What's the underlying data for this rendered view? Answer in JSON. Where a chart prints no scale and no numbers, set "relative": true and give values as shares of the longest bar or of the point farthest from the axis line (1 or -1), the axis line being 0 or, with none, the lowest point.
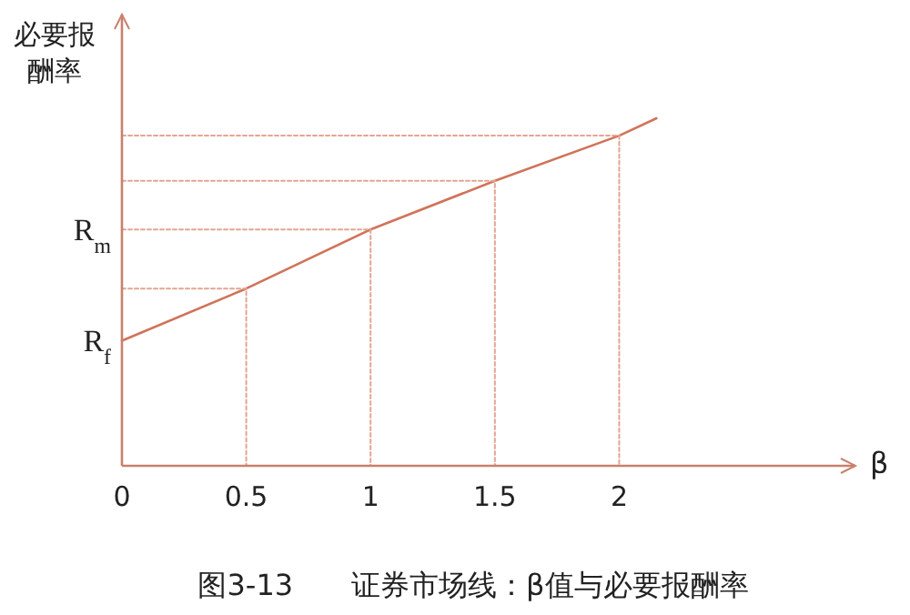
{
  "chart_data": {
    "type": "line",
    "relative": true,
    "title": "图3-13　　证券市场线：β值与必要报酬率",
    "xlabel": "β",
    "ylabel": "必要报酬率",
    "xlim": [
      0,
      2.95
    ],
    "xticks": [
      0,
      0.5,
      1,
      1.5,
      2
    ],
    "marker": "none",
    "grid": false,
    "annotations": [
      {
        "text": "R$_{f}$",
        "x": 0,
        "y": 0.36
      },
      {
        "text": "R$_{m}$",
        "x": 0,
        "y": 0.68
      }
    ],
    "series": [
      {
        "color": "#d0735a",
        "x": [
          0,
          0.5,
          1,
          1.5,
          2,
          2.15
        ],
        "values": [
          0.36,
          0.51,
          0.68,
          0.82,
          0.95,
          1
        ],
        "line_style": "solid"
      },
      {
        "color": "#e3a593",
        "x": [
          0,
          0.5,
          0.5
        ],
        "values": [
          0.51,
          0.51,
          0
        ],
        "line_style": "dotted"
      },
      {
        "color": "#e3a593",
        "x": [
          0,
          1,
          1
        ],
        "values": [
          0.68,
          0.68,
          0
        ],
        "line_style": "dotted"
      },
      {
        "color": "#e3a593",
        "x": [
          0,
          1.5,
          1.5
        ],
        "values": [
          0.82,
          0.82,
          0
        ],
        "line_style": "dotted"
      },
      {
        "color": "#e3a593",
        "x": [
          0,
          2,
          2
        ],
        "values": [
          0.95,
          0.95,
          0
        ],
        "line_style": "dotted"
      }
    ]
  }
}
